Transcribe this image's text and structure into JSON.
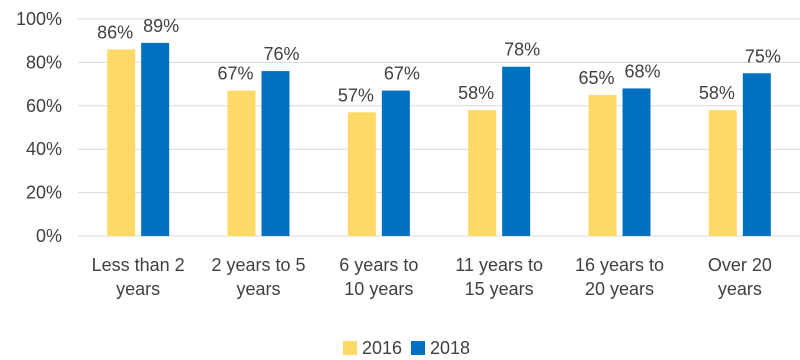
{
  "chart_data": {
    "type": "bar",
    "categories": [
      [
        "Less than 2",
        "years"
      ],
      [
        "2 years to 5",
        "years"
      ],
      [
        "6 years to",
        "10 years"
      ],
      [
        "11 years to",
        "15 years"
      ],
      [
        "16 years to",
        "20 years"
      ],
      [
        "Over 20",
        "years"
      ]
    ],
    "series": [
      {
        "name": "2016",
        "color": "#FFD966",
        "values": [
          86,
          67,
          57,
          58,
          65,
          58
        ]
      },
      {
        "name": "2018",
        "color": "#0070C0",
        "values": [
          89,
          76,
          67,
          78,
          68,
          75
        ]
      }
    ],
    "ylim": [
      0,
      100
    ],
    "yticks": [
      0,
      20,
      40,
      60,
      80,
      100
    ],
    "value_suffix": "%",
    "grid": true,
    "grid_color": "#D9D9D9",
    "legend_position": "bottom",
    "title": "",
    "xlabel": "",
    "ylabel": ""
  }
}
